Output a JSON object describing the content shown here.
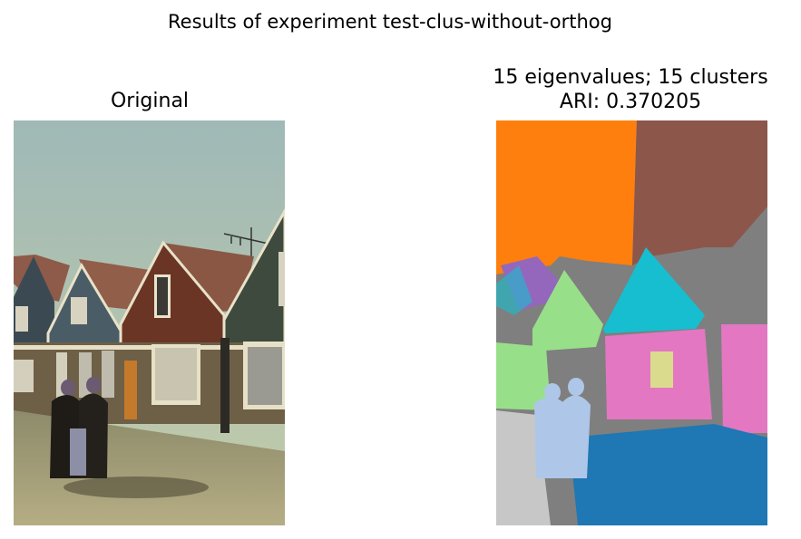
{
  "figure": {
    "suptitle": "Results of experiment test-clus-without-orthog",
    "left_panel": {
      "title": "Original",
      "image": "street-photo-houses-two-women"
    },
    "right_panel": {
      "title_line1": "15 eigenvalues; 15 clusters",
      "title_line2": "ARI: 0.370205",
      "image": "cluster-segmentation-map"
    }
  },
  "palette": {
    "sky": "#a9bdb8",
    "orange": "#ff7f0e",
    "brown": "#8c564b",
    "gray": "#7f7f7f",
    "blue": "#1f77b4",
    "cyan": "#17becf",
    "pink": "#e377c2",
    "green": "#98df8a",
    "purple": "#9467bd",
    "lightblue": "#aec7e8",
    "lightgray": "#c7c7c7",
    "yellow": "#dbdb8d"
  }
}
